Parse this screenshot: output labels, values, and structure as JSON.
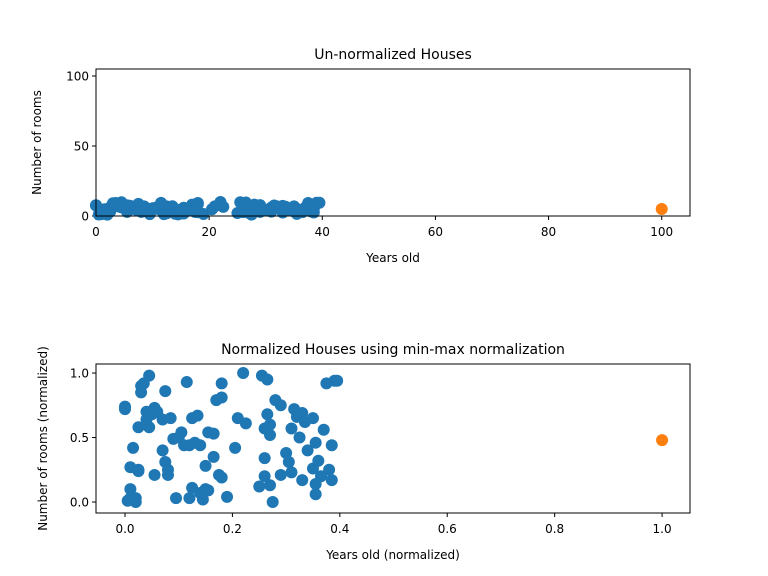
{
  "chart_data": [
    {
      "type": "scatter",
      "title": "Un-normalized Houses",
      "xlabel": "Years old",
      "ylabel": "Number of rooms",
      "xlim": [
        0,
        105
      ],
      "ylim": [
        0,
        105
      ],
      "xticks": [
        0,
        20,
        40,
        60,
        80,
        100
      ],
      "yticks": [
        0,
        50,
        100
      ],
      "series": [
        {
          "color": "#1f77b4",
          "x": [
            0,
            0,
            1,
            1,
            0.5,
            1,
            1.5,
            2,
            2,
            2.5,
            2.5,
            2.5,
            3,
            3,
            3.5,
            4,
            4,
            4.5,
            4.5,
            5,
            5.5,
            6,
            5.5,
            7,
            7,
            7.5,
            7.5,
            8,
            8,
            8.5,
            9,
            9.5,
            10,
            10.5,
            11,
            11.5,
            12,
            12,
            12.5,
            12.5,
            13,
            13.5,
            14,
            14,
            14.5,
            15,
            15,
            15.5,
            15.5,
            16.5,
            16.5,
            17,
            17.5,
            18,
            18,
            19,
            18,
            20.5,
            21,
            22,
            22.5,
            25,
            25.5,
            26,
            26,
            26,
            26.5,
            26.5,
            27,
            27,
            27,
            27.5,
            28,
            29,
            29,
            30,
            30.5,
            31,
            31,
            31.5,
            32,
            32.5,
            33,
            33,
            33.5,
            34,
            35,
            35,
            35.5,
            35.5,
            35.5,
            36,
            36.5,
            37,
            37.5,
            38,
            38.5,
            38.5,
            39,
            39.5
          ],
          "values": [
            7.7,
            7.5,
            1.9,
            1.3,
            1.1,
            3.4,
            4.8,
            1.3,
            1.0,
            3.3,
            3.2,
            6.2,
            8.7,
            9.1,
            9.3,
            7.3,
            6.8,
            9.8,
            6.2,
            7.1,
            7.6,
            7.3,
            2.9,
            4.6,
            6.8,
            8.7,
            3.8,
            3.3,
            2.9,
            6.9,
            5.4,
            1.3,
            5.5,
            5.9,
            5.0,
            9.4,
            5.0,
            1.3,
            2.0,
            6.9,
            5.1,
            7.0,
            5.0,
            1.6,
            1.2,
            3.5,
            1.9,
            1.8,
            5.9,
            5.8,
            4.2,
            8.1,
            2.9,
            2.7,
            9.3,
            1.4,
            8.3,
            4.8,
            6.9,
            10.0,
            6.5,
            2.1,
            9.8,
            6.1,
            4.1,
            2.8,
            9.6,
            7.1,
            6.4,
            5.7,
            2.2,
            1.0,
            8.1,
            7.8,
            2.9,
            4.4,
            3.8,
            3.1,
            6.1,
            7.5,
            6.9,
            5.5,
            7.2,
            2.5,
            6.6,
            4.6,
            3.3,
            6.9,
            5.1,
            2.3,
            1.5,
            3.9,
            2.8,
            6.0,
            9.3,
            3.3,
            2.5,
            5.0,
            9.5,
            9.5
          ]
        },
        {
          "color": "#ff7f0e",
          "x": [
            100
          ],
          "values": [
            5
          ]
        }
      ]
    },
    {
      "type": "scatter",
      "title": "Normalized Houses using min-max normalization",
      "xlabel": "Years old (normalized)",
      "ylabel": "Number of rooms (normalized)",
      "xlim": [
        -0.054,
        1.052
      ],
      "ylim": [
        -0.085,
        1.07
      ],
      "xticks": [
        {
          "value": 0,
          "label": "0.0"
        },
        {
          "value": 0.2,
          "label": "0.2"
        },
        {
          "value": 0.4,
          "label": "0.4"
        },
        {
          "value": 0.6,
          "label": "0.6"
        },
        {
          "value": 0.8,
          "label": "0.8"
        },
        {
          "value": 1,
          "label": "1.0"
        }
      ],
      "yticks": [
        {
          "value": 0,
          "label": "0.0"
        },
        {
          "value": 0.5,
          "label": "0.5"
        },
        {
          "value": 1,
          "label": "1.0"
        }
      ],
      "series": [
        {
          "color": "#1f77b4",
          "x": [
            0,
            0,
            0.01,
            0.01,
            0.005,
            0.01,
            0.015,
            0.02,
            0.02,
            0.025,
            0.025,
            0.025,
            0.03,
            0.03,
            0.035,
            0.04,
            0.04,
            0.045,
            0.045,
            0.05,
            0.055,
            0.06,
            0.055,
            0.07,
            0.07,
            0.075,
            0.075,
            0.08,
            0.08,
            0.085,
            0.09,
            0.095,
            0.1,
            0.105,
            0.11,
            0.115,
            0.12,
            0.12,
            0.125,
            0.125,
            0.13,
            0.135,
            0.14,
            0.14,
            0.145,
            0.15,
            0.15,
            0.155,
            0.155,
            0.165,
            0.165,
            0.17,
            0.175,
            0.18,
            0.18,
            0.19,
            0.18,
            0.205,
            0.21,
            0.22,
            0.225,
            0.25,
            0.255,
            0.26,
            0.26,
            0.26,
            0.265,
            0.265,
            0.27,
            0.27,
            0.27,
            0.275,
            0.28,
            0.29,
            0.29,
            0.3,
            0.305,
            0.31,
            0.31,
            0.315,
            0.32,
            0.325,
            0.33,
            0.33,
            0.335,
            0.34,
            0.35,
            0.35,
            0.355,
            0.355,
            0.355,
            0.36,
            0.365,
            0.37,
            0.375,
            0.38,
            0.385,
            0.385,
            0.39,
            0.395
          ],
          "values": [
            0.74,
            0.72,
            0.1,
            0.03,
            0.01,
            0.27,
            0.42,
            0.03,
            0,
            0.25,
            0.24,
            0.58,
            0.85,
            0.9,
            0.92,
            0.7,
            0.64,
            0.98,
            0.58,
            0.68,
            0.73,
            0.7,
            0.21,
            0.4,
            0.64,
            0.86,
            0.31,
            0.25,
            0.21,
            0.65,
            0.49,
            0.03,
            0.5,
            0.54,
            0.44,
            0.93,
            0.44,
            0.03,
            0.11,
            0.65,
            0.46,
            0.67,
            0.44,
            0.07,
            0.02,
            0.28,
            0.1,
            0.09,
            0.54,
            0.53,
            0.35,
            0.79,
            0.21,
            0.19,
            0.92,
            0.04,
            0.81,
            0.42,
            0.65,
            1,
            0.61,
            0.12,
            0.98,
            0.57,
            0.34,
            0.2,
            0.95,
            0.68,
            0.6,
            0.52,
            0.13,
            0,
            0.79,
            0.75,
            0.21,
            0.38,
            0.31,
            0.23,
            0.57,
            0.72,
            0.66,
            0.5,
            0.69,
            0.17,
            0.62,
            0.4,
            0.26,
            0.65,
            0.46,
            0.14,
            0.06,
            0.32,
            0.2,
            0.56,
            0.92,
            0.25,
            0.17,
            0.44,
            0.94,
            0.94
          ]
        },
        {
          "color": "#ff7f0e",
          "x": [
            1
          ],
          "values": [
            0.48
          ]
        }
      ]
    }
  ]
}
